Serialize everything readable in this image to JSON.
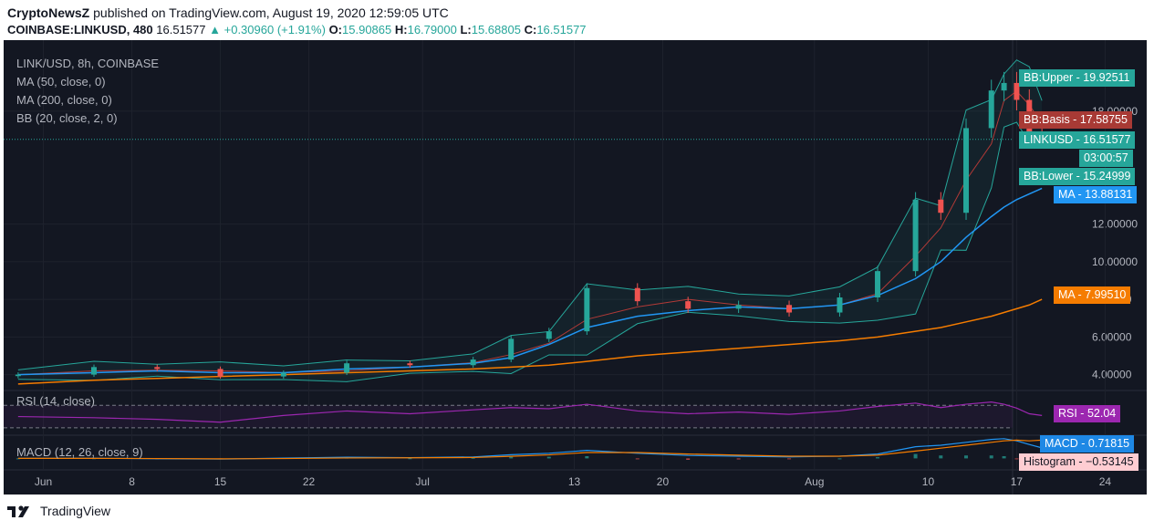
{
  "header": {
    "publisher_name": "CryptoNewsZ",
    "publisher_rest": "published on TradingView.com, August 19, 2020 12:59:05 UTC",
    "symbol": "COINBASE:LINKUSD, 480",
    "last": "16.51577",
    "change": "+0.30960 (+1.91%)",
    "o_label": "O:",
    "o": "15.90865",
    "h_label": "H:",
    "h": "16.79000",
    "l_label": "L:",
    "l": "15.68805",
    "c_label": "C:",
    "c": "16.51577"
  },
  "legend": {
    "pair": "LINK/USD, 8h, COINBASE",
    "ma50": "MA (50, close, 0)",
    "ma200": "MA (200, close, 0)",
    "bb": "BB (20, close, 2, 0)"
  },
  "rsi_label": "RSI (14, close)",
  "macd_label": "MACD (12, 26, close, 9)",
  "badges": [
    {
      "label": "BB:Upper",
      "value": "19.92511",
      "color": "#26a69a"
    },
    {
      "label": "BB:Basis",
      "value": "17.58755",
      "color": "#a83a35"
    },
    {
      "label": "LINKUSD",
      "value": "16.51577",
      "color": "#26a69a"
    },
    {
      "label": "",
      "value": "03:00:57",
      "color": "#26a69a"
    },
    {
      "label": "BB:Lower",
      "value": "15.24999",
      "color": "#26a69a"
    },
    {
      "label": "MA",
      "value": "13.88131",
      "color": "#2196f3"
    },
    {
      "label": "MA",
      "value": "7.99510",
      "color": "#f57c00"
    },
    {
      "label": "RSI",
      "value": "52.04",
      "color": "#9c27b0"
    },
    {
      "label": "MACD",
      "value": "0.71815",
      "color": "#1e88e5"
    },
    {
      "label": "Histogram",
      "value": "−0.53145",
      "color": "#ffcdd2"
    }
  ],
  "footer": {
    "brand": "TradingView"
  },
  "colors": {
    "up": "#26a69a",
    "down": "#ef5350",
    "ma50": "#2196f3",
    "ma200": "#f57c00",
    "bb_basis": "#b23a37",
    "bb_band": "#26a69a",
    "rsi": "#9c27b0",
    "bg": "#131722"
  },
  "chart_data": {
    "type": "line",
    "title": "LINK/USD, 8h, COINBASE",
    "xlabel": "",
    "ylabel": "",
    "ylim": [
      3.3,
      21
    ],
    "y_ticks": [
      4,
      6,
      8,
      10,
      12,
      18
    ],
    "y_tick_labels": [
      "4.00000",
      "6.00000",
      "8.00000",
      "10.00000",
      "12.00000",
      "18.00000"
    ],
    "x_tick_labels": [
      "Jun",
      "8",
      "15",
      "22",
      "Jul",
      "13",
      "20",
      "Aug",
      "10",
      "17",
      "24"
    ],
    "x_tick_dates": [
      "2020-06-01",
      "2020-06-08",
      "2020-06-15",
      "2020-06-22",
      "2020-07-01",
      "2020-07-13",
      "2020-07-20",
      "2020-08-01",
      "2020-08-10",
      "2020-08-17",
      "2020-08-24"
    ],
    "x": [
      "2020-05-30",
      "2020-06-05",
      "2020-06-10",
      "2020-06-15",
      "2020-06-20",
      "2020-06-25",
      "2020-06-30",
      "2020-07-05",
      "2020-07-08",
      "2020-07-11",
      "2020-07-14",
      "2020-07-18",
      "2020-07-22",
      "2020-07-26",
      "2020-07-30",
      "2020-08-03",
      "2020-08-06",
      "2020-08-09",
      "2020-08-11",
      "2020-08-13",
      "2020-08-15",
      "2020-08-16",
      "2020-08-17",
      "2020-08-18",
      "2020-08-19"
    ],
    "series": [
      {
        "name": "LINKUSD",
        "values": [
          4.0,
          4.4,
          4.3,
          3.9,
          4.1,
          4.6,
          4.5,
          4.8,
          5.9,
          6.3,
          8.6,
          7.9,
          7.5,
          7.7,
          7.3,
          8.1,
          9.5,
          13.3,
          12.6,
          17.1,
          19.1,
          19.5,
          18.6,
          16.9,
          16.5
        ]
      },
      {
        "name": "MA",
        "values": [
          4.0,
          4.1,
          4.2,
          4.1,
          4.1,
          4.3,
          4.4,
          4.6,
          4.9,
          5.6,
          6.5,
          7.1,
          7.4,
          7.6,
          7.5,
          7.7,
          8.2,
          9.1,
          10.0,
          11.3,
          12.4,
          12.9,
          13.3,
          13.6,
          13.9
        ]
      },
      {
        "name": "MA",
        "values": [
          3.5,
          3.7,
          3.8,
          3.9,
          4.0,
          4.1,
          4.2,
          4.3,
          4.4,
          4.5,
          4.7,
          5.0,
          5.2,
          5.4,
          5.6,
          5.8,
          6.0,
          6.3,
          6.5,
          6.8,
          7.1,
          7.3,
          7.5,
          7.7,
          8.0
        ]
      }
    ],
    "rsi_values": [
      50,
      48,
      45,
      40,
      52,
      60,
      55,
      62,
      66,
      64,
      72,
      60,
      55,
      58,
      54,
      60,
      68,
      74,
      66,
      72,
      76,
      72,
      65,
      55,
      52
    ],
    "macd_values": [
      0.0,
      0.01,
      -0.02,
      -0.05,
      0.02,
      0.08,
      0.05,
      0.1,
      0.25,
      0.35,
      0.55,
      0.35,
      0.2,
      0.15,
      0.1,
      0.15,
      0.3,
      0.8,
      0.9,
      1.1,
      1.3,
      1.35,
      1.2,
      0.95,
      0.72
    ],
    "macd_signal": [
      0.0,
      0.0,
      -0.01,
      -0.03,
      -0.01,
      0.03,
      0.04,
      0.06,
      0.14,
      0.24,
      0.4,
      0.4,
      0.3,
      0.22,
      0.15,
      0.15,
      0.22,
      0.5,
      0.7,
      0.9,
      1.1,
      1.2,
      1.25,
      1.2,
      1.25
    ],
    "legend_position": "top-left",
    "grid": true
  }
}
